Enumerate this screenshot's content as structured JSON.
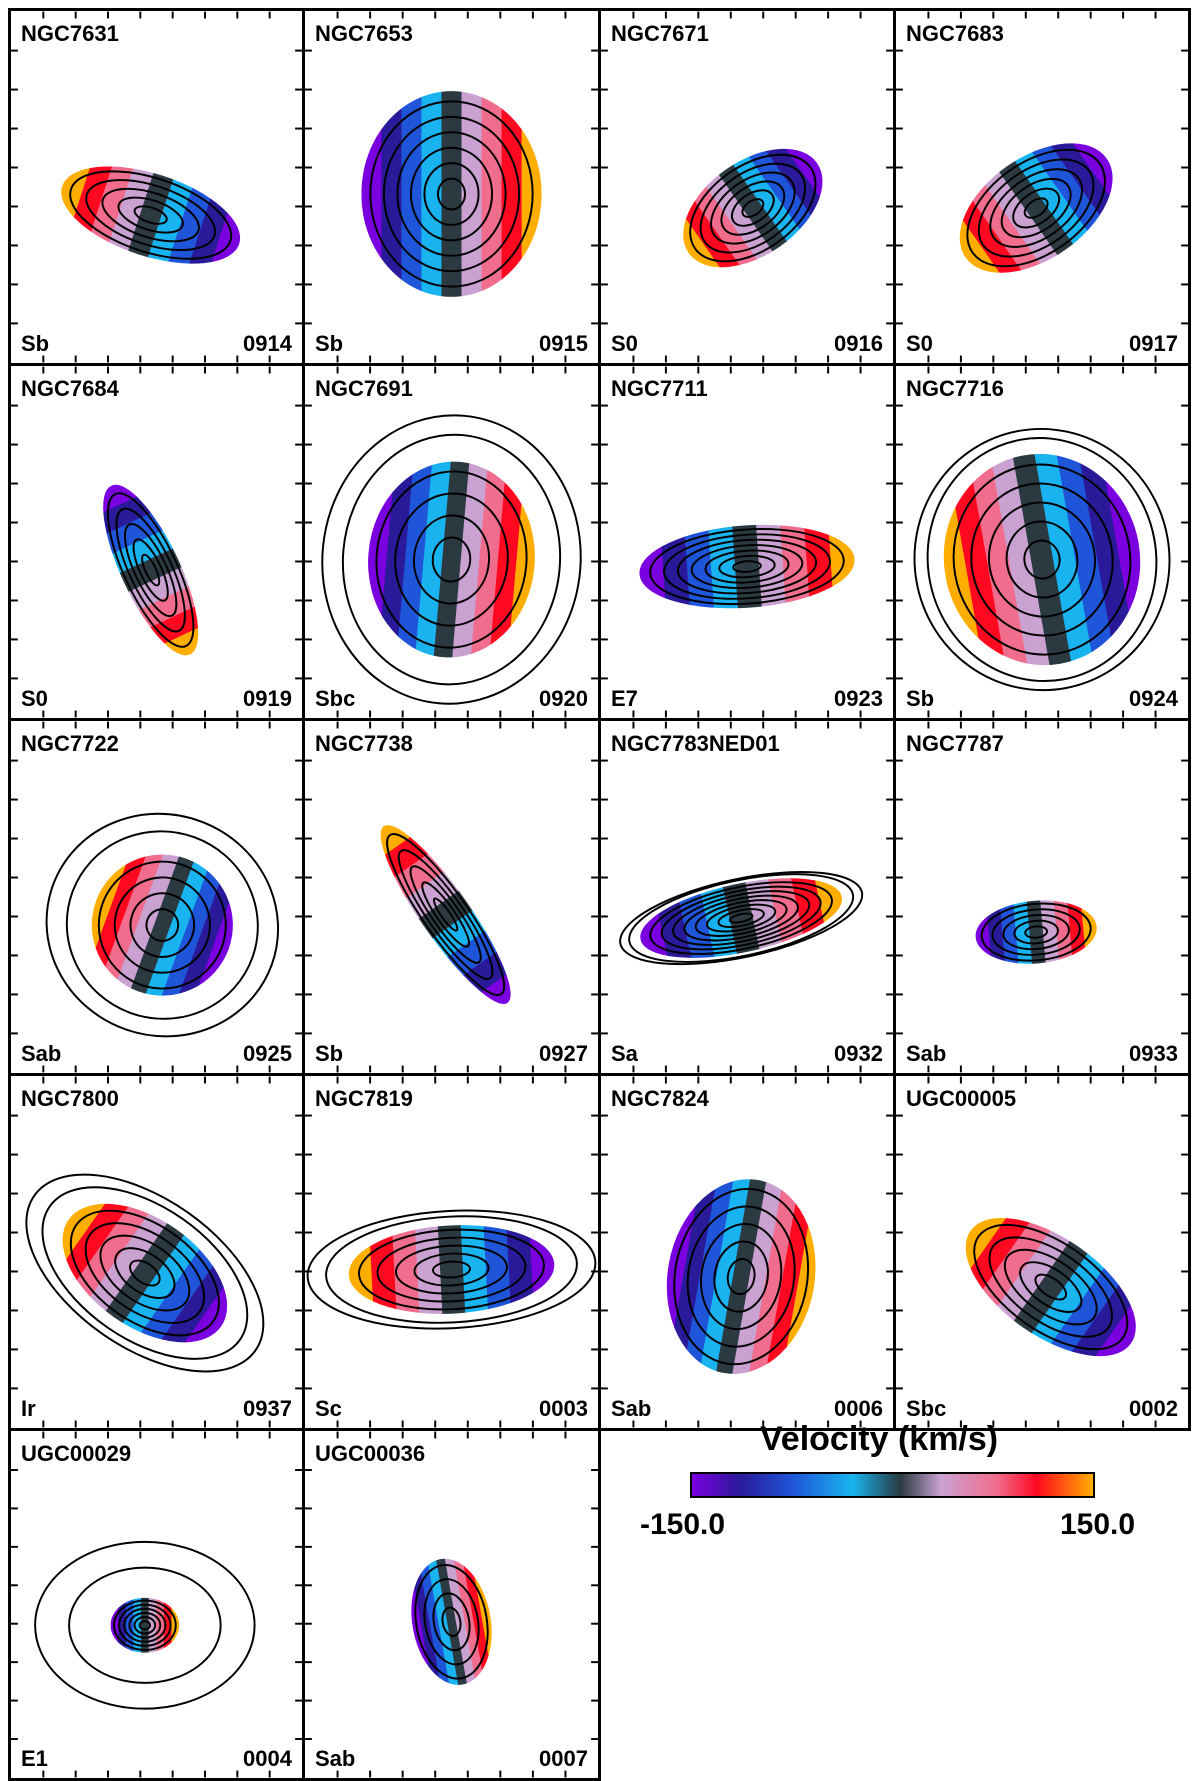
{
  "panels": [
    {
      "name": "NGC7631",
      "type": "Sb",
      "id": "0914"
    },
    {
      "name": "NGC7653",
      "type": "Sb",
      "id": "0915"
    },
    {
      "name": "NGC7671",
      "type": "S0",
      "id": "0916"
    },
    {
      "name": "NGC7683",
      "type": "S0",
      "id": "0917"
    },
    {
      "name": "NGC7684",
      "type": "S0",
      "id": "0919"
    },
    {
      "name": "NGC7691",
      "type": "Sbc",
      "id": "0920"
    },
    {
      "name": "NGC7711",
      "type": "E7",
      "id": "0923"
    },
    {
      "name": "NGC7716",
      "type": "Sb",
      "id": "0924"
    },
    {
      "name": "NGC7722",
      "type": "Sab",
      "id": "0925"
    },
    {
      "name": "NGC7738",
      "type": "Sb",
      "id": "0927"
    },
    {
      "name": "NGC7783NED01",
      "type": "Sa",
      "id": "0932"
    },
    {
      "name": "NGC7787",
      "type": "Sab",
      "id": "0933"
    },
    {
      "name": "NGC7800",
      "type": "Ir",
      "id": "0937"
    },
    {
      "name": "NGC7819",
      "type": "Sc",
      "id": "0003"
    },
    {
      "name": "NGC7824",
      "type": "Sab",
      "id": "0006"
    },
    {
      "name": "UGC00005",
      "type": "Sbc",
      "id": "0002"
    },
    {
      "name": "UGC00029",
      "type": "E1",
      "id": "0004"
    },
    {
      "name": "UGC00036",
      "type": "Sab",
      "id": "0007"
    }
  ],
  "legend": {
    "title": "Velocity (km/s)",
    "min_label": "-150.0",
    "max_label": "150.0",
    "colors": [
      "#7a00e0",
      "#2a1a9a",
      "#1f55d8",
      "#19b4f0",
      "#2a3a40",
      "#c9a2d2",
      "#f06d8e",
      "#ff0820",
      "#ffae00"
    ]
  }
}
